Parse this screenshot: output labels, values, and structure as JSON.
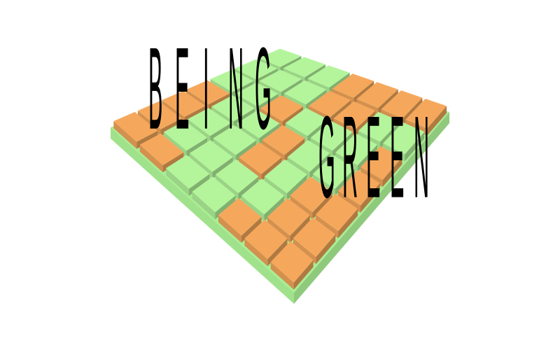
{
  "title": {
    "word1": [
      "B",
      "E",
      "I",
      "N",
      "G"
    ],
    "word2": [
      "G",
      "R",
      "E",
      "E",
      "N"
    ]
  },
  "board": {
    "rows": 7,
    "cols": 7,
    "colors": {
      "green": "#b4f59c",
      "orange": "#f5a85c",
      "base": "#a8ee92"
    },
    "tiles": [
      [
        "green",
        "green",
        "green",
        "orange",
        "orange",
        "orange",
        "orange"
      ],
      [
        "green",
        "green",
        "green",
        "orange",
        "orange",
        "green",
        "green"
      ],
      [
        "green",
        "green",
        "orange",
        "green",
        "green",
        "green",
        "orange"
      ],
      [
        "orange",
        "green",
        "green",
        "orange",
        "green",
        "green",
        "orange"
      ],
      [
        "orange",
        "green",
        "green",
        "orange",
        "green",
        "orange",
        "orange"
      ],
      [
        "orange",
        "green",
        "green",
        "green",
        "green",
        "orange",
        "orange"
      ],
      [
        "orange",
        "orange",
        "green",
        "green",
        "orange",
        "orange",
        "orange"
      ]
    ]
  }
}
